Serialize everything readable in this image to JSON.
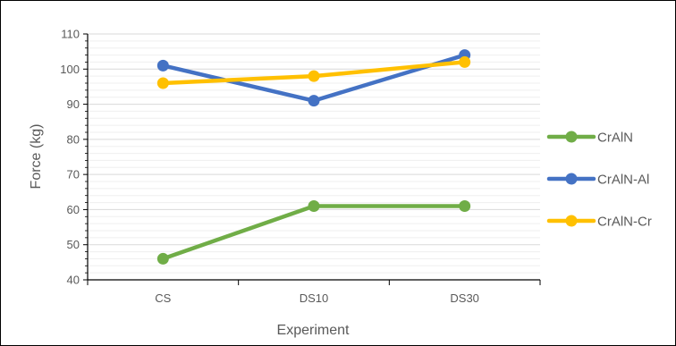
{
  "chart_data": {
    "type": "line",
    "title": "",
    "xlabel": "Experiment",
    "ylabel": "Force (kg)",
    "categories": [
      "CS",
      "DS10",
      "DS30"
    ],
    "ylim": [
      40,
      110
    ],
    "y_major_step": 10,
    "y_minor_step": 2,
    "grid": true,
    "legend_position": "right",
    "series": [
      {
        "name": "CrAlN",
        "values": [
          46,
          61,
          61
        ],
        "color": "#70AD47"
      },
      {
        "name": "CrAlN-Al",
        "values": [
          101,
          91,
          104
        ],
        "color": "#4472C4"
      },
      {
        "name": "CrAlN-Cr",
        "values": [
          96,
          98,
          102
        ],
        "color": "#FFC000"
      }
    ]
  }
}
